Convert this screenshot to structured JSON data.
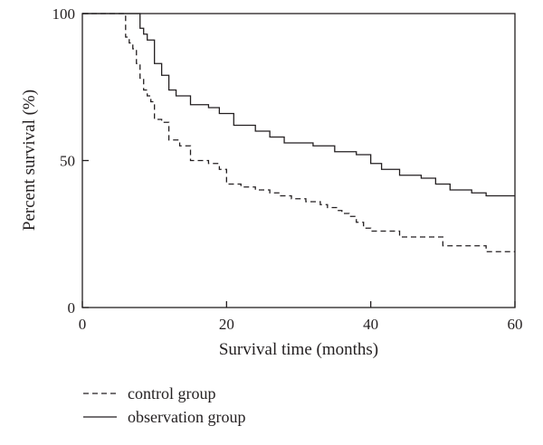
{
  "chart_data": {
    "type": "line",
    "step": true,
    "xlabel": "Survival time (months)",
    "ylabel": "Percent survival (%)",
    "xlim": [
      0,
      60
    ],
    "ylim": [
      0,
      100
    ],
    "xticks": [
      0,
      20,
      40,
      60
    ],
    "yticks": [
      0,
      50,
      100
    ],
    "grid": false,
    "legend_position": "bottom-left",
    "series": [
      {
        "name": "control group",
        "style": "dashed",
        "color": "#231f20",
        "x": [
          0,
          6,
          6.5,
          7,
          7.5,
          8,
          8.5,
          9,
          9.5,
          10,
          11,
          12,
          13.5,
          15,
          17.5,
          19,
          20,
          22,
          24,
          26,
          27.5,
          29,
          31,
          33,
          34,
          35.5,
          36,
          37,
          38,
          39,
          40,
          42,
          44,
          48,
          50,
          52,
          56,
          60
        ],
        "y": [
          100,
          92,
          90,
          88,
          83,
          78,
          74,
          72,
          70,
          64,
          63,
          57,
          55,
          50,
          49,
          47,
          42,
          41,
          40,
          39,
          38,
          37,
          36,
          35,
          34,
          33,
          32,
          31,
          29,
          27,
          26,
          26,
          24,
          24,
          21,
          21,
          19,
          19
        ]
      },
      {
        "name": "observation group",
        "style": "solid",
        "color": "#231f20",
        "x": [
          0,
          8,
          8.5,
          9,
          10,
          11,
          12,
          13,
          15,
          17.5,
          19,
          21,
          24,
          26,
          28,
          32,
          35,
          38,
          40,
          41.5,
          44,
          47,
          49,
          51,
          54,
          56,
          60
        ],
        "y": [
          100,
          95,
          93,
          91,
          83,
          79,
          74,
          72,
          69,
          68,
          66,
          62,
          60,
          58,
          56,
          55,
          53,
          52,
          49,
          47,
          45,
          44,
          42,
          40,
          39,
          38,
          38
        ]
      }
    ]
  }
}
